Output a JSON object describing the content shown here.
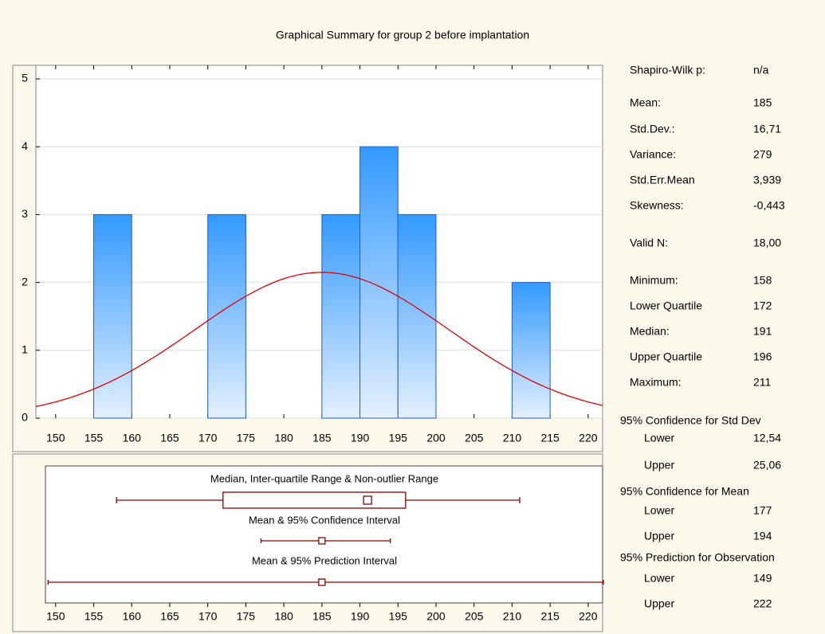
{
  "title": "Graphical Summary for group 2 before implantation",
  "chart_data": [
    {
      "type": "histogram",
      "bins": [
        155,
        160,
        165,
        170,
        175,
        180,
        185,
        190,
        195,
        200,
        205,
        210,
        215
      ],
      "values": [
        3,
        0,
        0,
        3,
        0,
        0,
        3,
        4,
        3,
        0,
        0,
        2
      ],
      "color": "#3399ff",
      "curve_color": "#e00000",
      "xlim": [
        147.4,
        221.9
      ],
      "xticks": [
        150,
        155,
        160,
        165,
        170,
        175,
        180,
        185,
        190,
        195,
        200,
        205,
        210,
        215,
        220
      ],
      "ylim": [
        0,
        5.2
      ],
      "yticks": [
        0,
        1,
        2,
        3,
        4,
        5
      ],
      "grid": true
    },
    {
      "type": "box",
      "labels": [
        "Median, Inter-quartile Range & Non-outlier Range",
        "Mean & 95% Confidence Interval",
        "Mean & 95% Prediction Interval"
      ],
      "color": "#8b0000",
      "xlim": [
        147.4,
        221.9
      ],
      "xticks": [
        150,
        155,
        160,
        165,
        170,
        175,
        180,
        185,
        190,
        195,
        200,
        205,
        210,
        215,
        220
      ]
    }
  ],
  "stats": [
    {
      "label": "Shapiro-Wilk p:",
      "value": "n/a"
    },
    {
      "label": "Mean:",
      "value": 185
    },
    {
      "label": "Std.Dev.:",
      "value": {
        "value": 16.71,
        "label": "16,71"
      }
    },
    {
      "label": "Variance:",
      "value": 279
    },
    {
      "label": "Std.Err.Mean",
      "value": {
        "value": 3.939,
        "label": "3,939"
      }
    },
    {
      "label": "Skewness:",
      "value": {
        "value": -0.443,
        "label": "-0,443"
      }
    },
    {
      "label": "Valid N:",
      "value": {
        "value": 18,
        "label": "18,00"
      }
    },
    {
      "label": "Minimum:",
      "value": 158
    },
    {
      "label": "Lower Quartile",
      "value": 172
    },
    {
      "label": "Median:",
      "value": 191
    },
    {
      "label": "Upper Quartile",
      "value": 196
    },
    {
      "label": "Maximum:",
      "value": 211
    },
    {
      "label": "95% Confidence for Std Dev"
    },
    {
      "label": "Lower",
      "value": {
        "value": 12.54,
        "label": "12,54"
      }
    },
    {
      "label": "Upper",
      "value": {
        "value": 25.06,
        "label": "25,06"
      }
    },
    {
      "label": "95% Confidence for Mean"
    },
    {
      "label": "Lower",
      "value": 177
    },
    {
      "label": "Upper",
      "value": 194
    },
    {
      "label": "95% Prediction for Observation"
    },
    {
      "label": "Lower",
      "value": 149
    },
    {
      "label": "Upper",
      "value": 222
    }
  ]
}
